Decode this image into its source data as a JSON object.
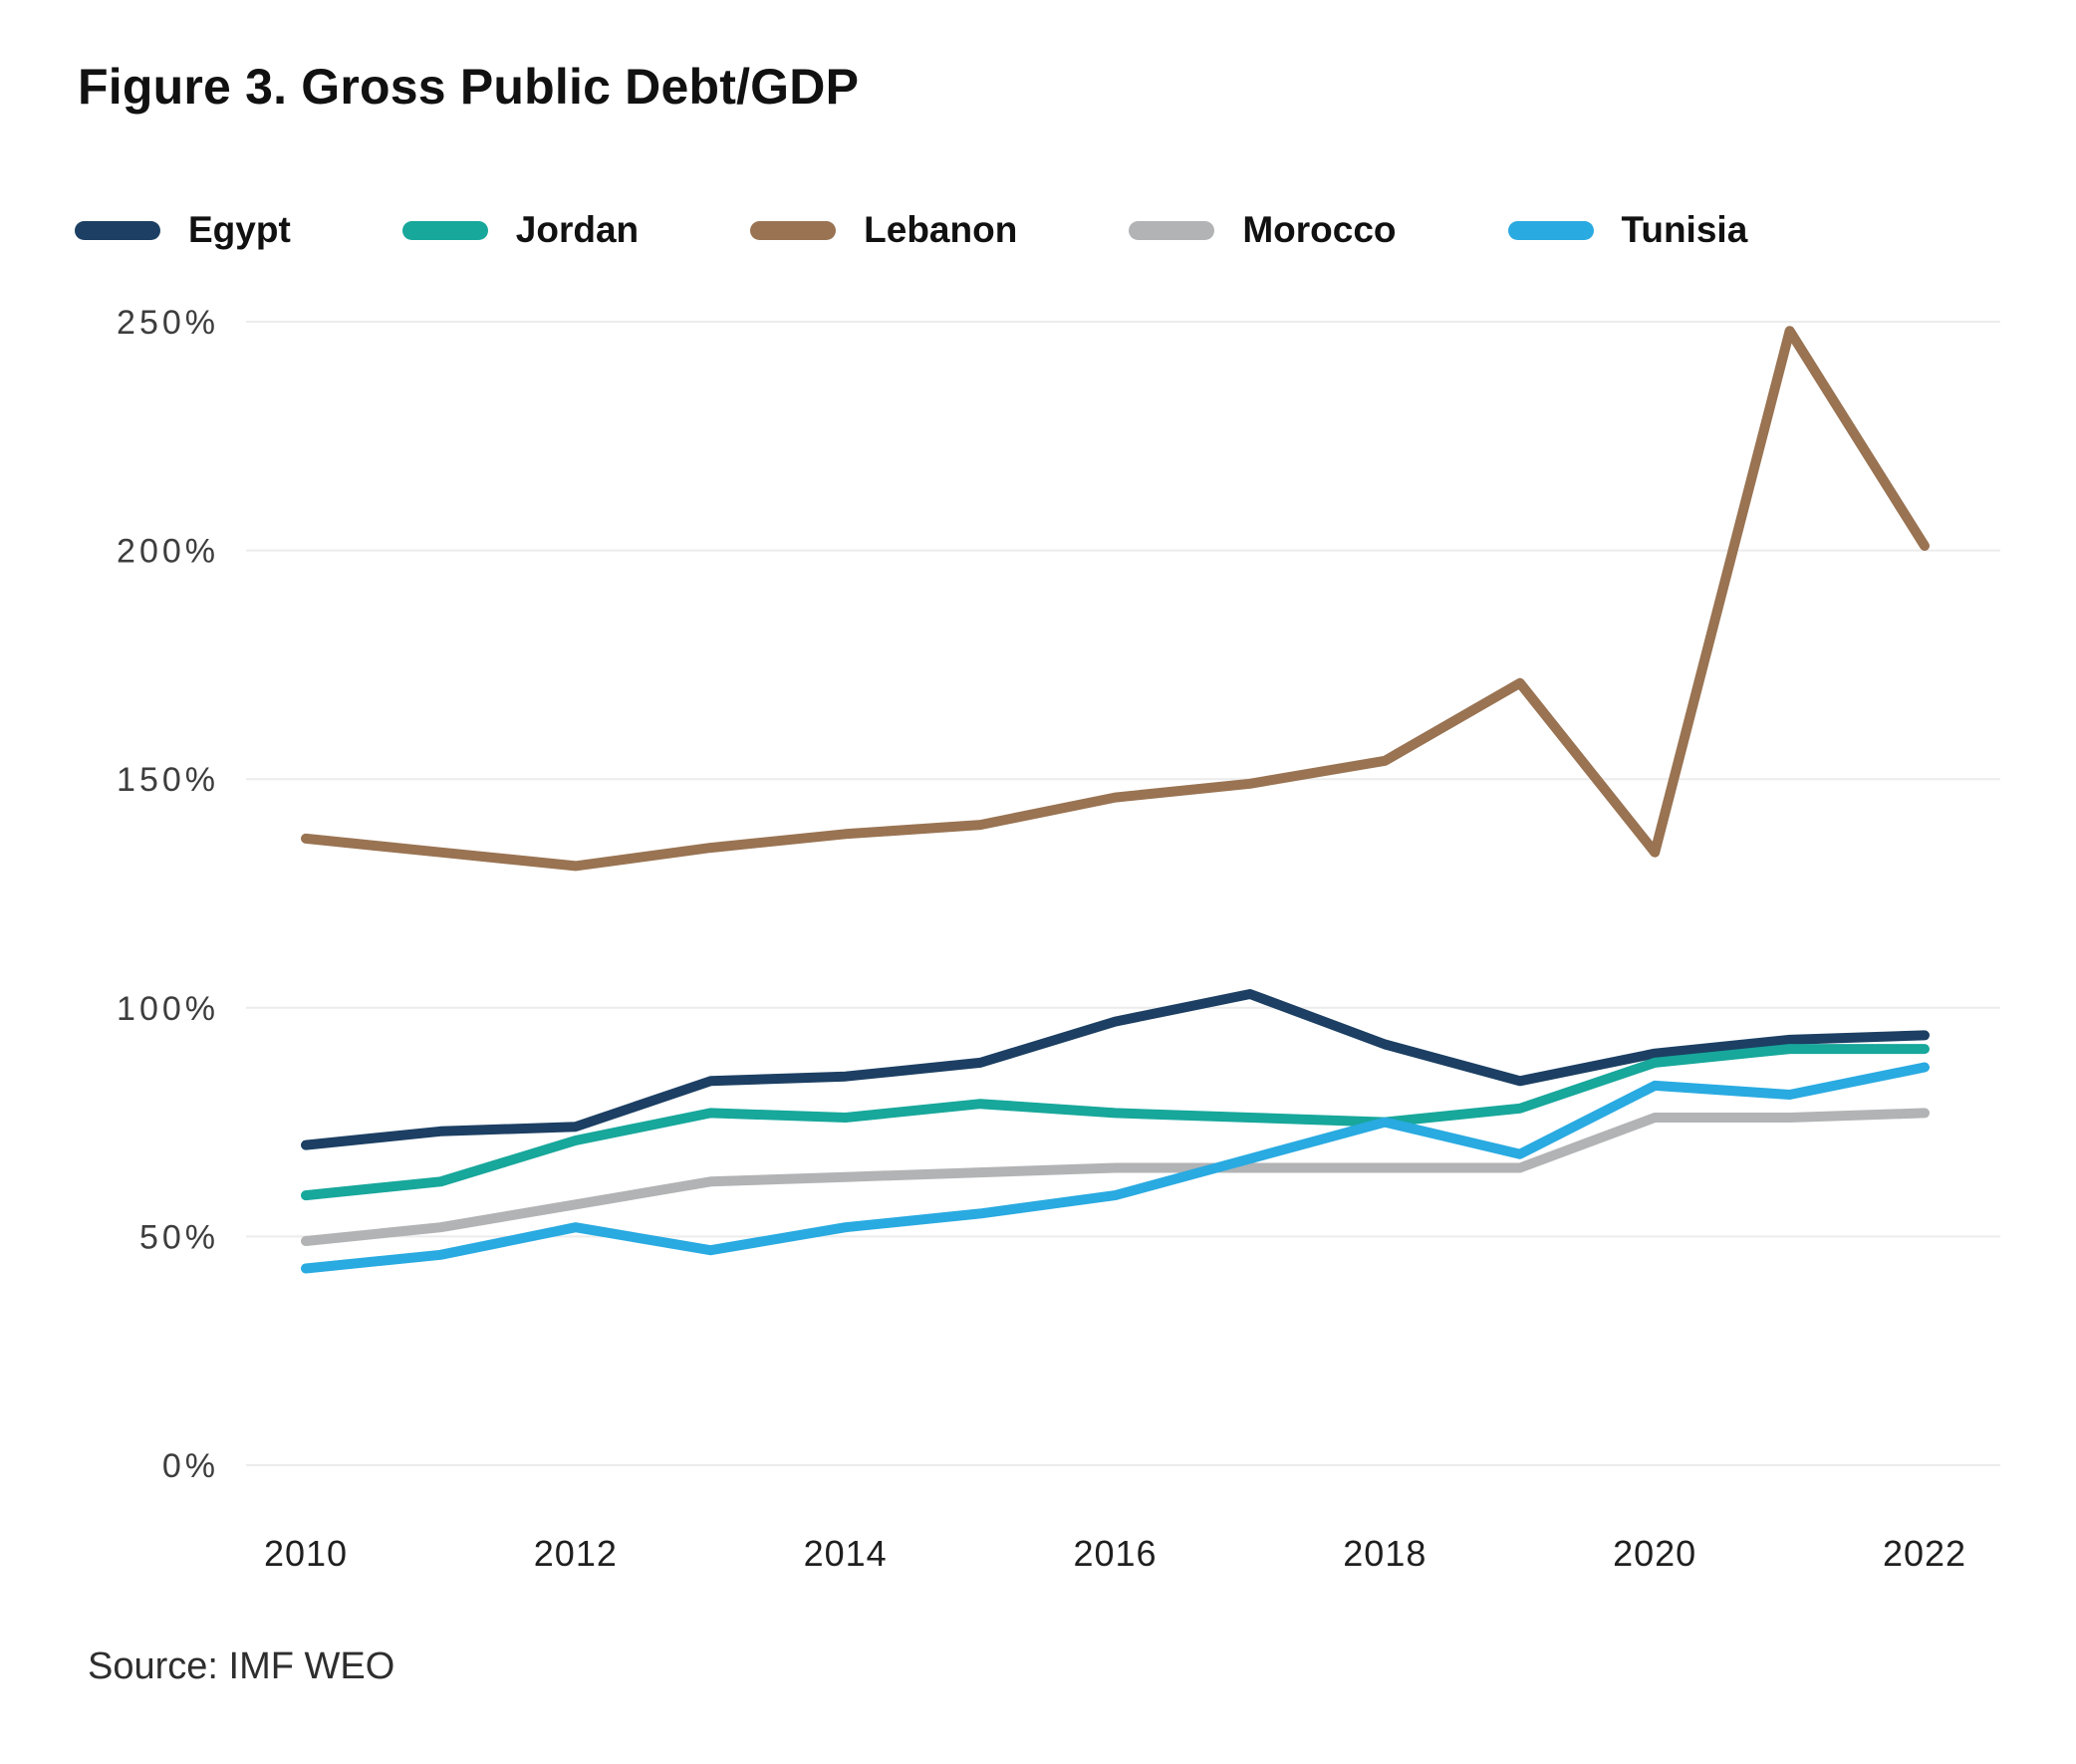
{
  "figure": {
    "title": "Figure 3. Gross Public Debt/GDP",
    "source_note": "Source: IMF WEO"
  },
  "colors": {
    "gridline": "#ececec",
    "y_tick_label": "#3d3d3d",
    "x_tick_label": "#1f1f1f",
    "title_text": "#111111"
  },
  "chart_data": {
    "type": "line",
    "title": "Figure 3. Gross Public Debt/GDP",
    "xlabel": "",
    "ylabel": "",
    "unit": "percent of GDP",
    "x": [
      2010,
      2011,
      2012,
      2013,
      2014,
      2015,
      2016,
      2017,
      2018,
      2019,
      2020,
      2021,
      2022
    ],
    "x_tick_labels": [
      "2010",
      "2012",
      "2014",
      "2016",
      "2018",
      "2020",
      "2022"
    ],
    "ylim": [
      0,
      250
    ],
    "y_ticks": [
      0,
      50,
      100,
      150,
      200,
      250
    ],
    "y_tick_suffix": "%",
    "grid": "horizontal",
    "legend_position": "top",
    "series": [
      {
        "name": "Egypt",
        "color": "#1c3f63",
        "values": [
          70,
          73,
          74,
          84,
          85,
          88,
          97,
          103,
          92,
          84,
          90,
          93,
          94
        ]
      },
      {
        "name": "Jordan",
        "color": "#17a79b",
        "values": [
          59,
          62,
          71,
          77,
          76,
          79,
          77,
          76,
          75,
          78,
          88,
          91,
          91
        ]
      },
      {
        "name": "Lebanon",
        "color": "#997352",
        "values": [
          137,
          134,
          131,
          135,
          138,
          140,
          146,
          149,
          154,
          171,
          134,
          248,
          201
        ]
      },
      {
        "name": "Morocco",
        "color": "#b1b3b5",
        "values": [
          49,
          52,
          57,
          62,
          63,
          64,
          65,
          65,
          65,
          65,
          76,
          76,
          77
        ]
      },
      {
        "name": "Tunisia",
        "color": "#29aae1",
        "values": [
          43,
          46,
          52,
          47,
          52,
          55,
          59,
          67,
          75,
          68,
          83,
          81,
          87
        ]
      }
    ],
    "source": "Source: IMF WEO"
  }
}
